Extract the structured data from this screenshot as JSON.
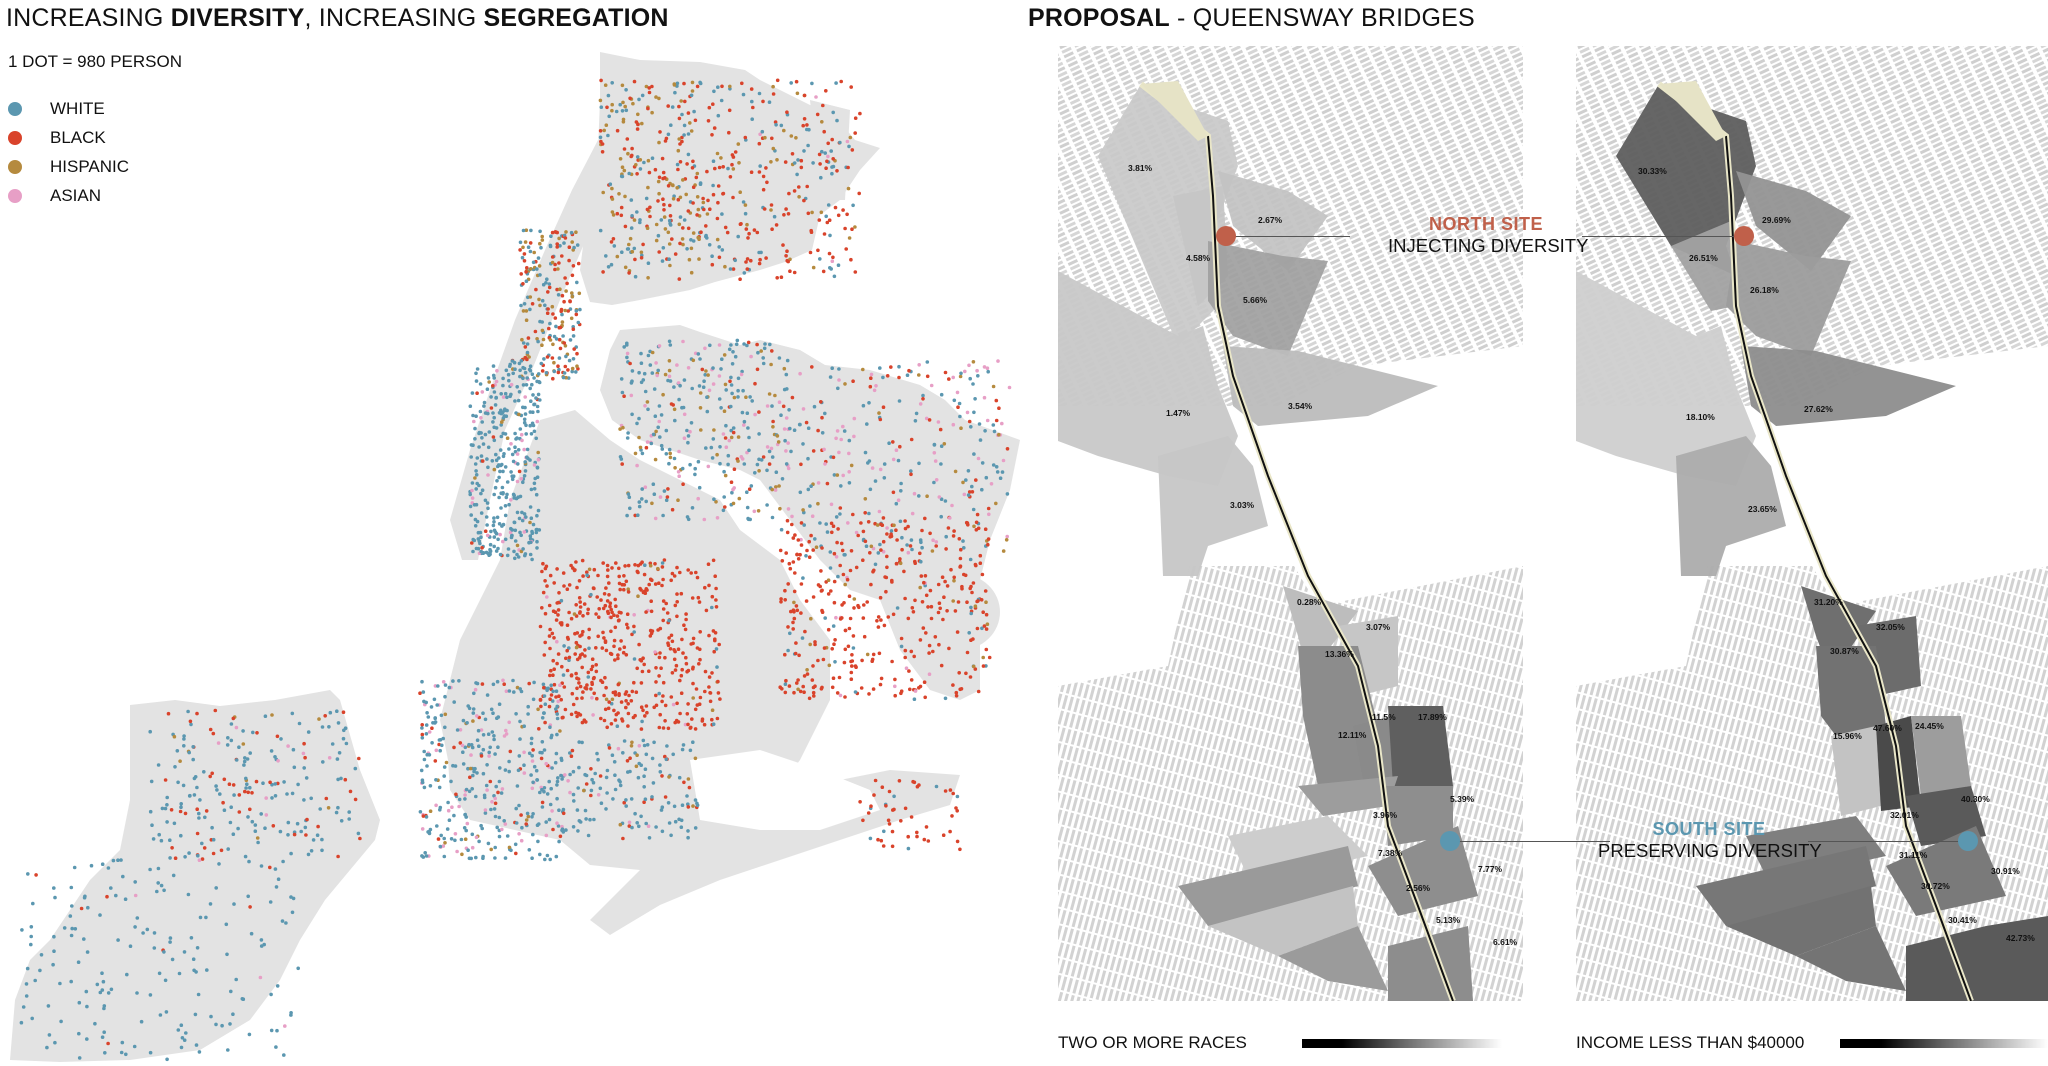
{
  "left": {
    "title_parts": [
      {
        "text": "INCREASING ",
        "bold": false
      },
      {
        "text": "DIVERSITY",
        "bold": true
      },
      {
        "text": ", INCREASING ",
        "bold": false
      },
      {
        "text": "SEGREGATION",
        "bold": true
      }
    ],
    "dot_scale": "1 DOT = 980 PERSON",
    "legend": [
      {
        "label": "WHITE",
        "color": "#5b97b0"
      },
      {
        "label": "BLACK",
        "color": "#d9432b"
      },
      {
        "label": "HISPANIC",
        "color": "#b58a3e"
      },
      {
        "label": "ASIAN",
        "color": "#e79fc6"
      }
    ],
    "map_land_color": "#e3e3e3"
  },
  "right": {
    "title_bold": "PROPOSAL",
    "title_rest": " - QUEENSWAY BRIDGES",
    "north_site": {
      "name": "NORTH SITE",
      "subtitle": "INJECTING DIVERSITY",
      "color": "#c0604a"
    },
    "south_site": {
      "name": "SOUTH SITE",
      "subtitle": "PRESERVING DIVERSITY",
      "color": "#5b97b0"
    },
    "races_map": {
      "legend_label": "TWO OR MORE RACES",
      "values": {
        "n1": "3.81%",
        "n2": "2.67%",
        "n3": "4.58%",
        "n4": "5.66%",
        "m1": "1.47%",
        "m2": "3.54%",
        "m3": "3.03%",
        "s1": "0.28%",
        "s2": "3.07%",
        "s3": "13.36%",
        "s4": "12.11%",
        "s5": "11.5%",
        "s6": "17.89%",
        "s7": "5.39%",
        "s8": "3.96%",
        "s9": "7.38%",
        "s10": "7.77%",
        "s11": "2.56%",
        "s12": "5.13%",
        "s13": "6.61%"
      }
    },
    "income_map": {
      "legend_label": "INCOME LESS THAN $40000",
      "values": {
        "n1": "30.33%",
        "n2": "29.69%",
        "n3": "26.51%",
        "n4": "26.18%",
        "m1": "18.10%",
        "m2": "27.62%",
        "m3": "23.65%",
        "s1": "31.20%",
        "s2": "32.05%",
        "s3": "30.87%",
        "s4": "15.96%",
        "s5": "47.60%",
        "s6": "24.45%",
        "s7": "40.30%",
        "s8": "32.01%",
        "s9": "31.11%",
        "s10": "30.91%",
        "s11": "30.72%",
        "s12": "30.41%",
        "s13": "42.73%"
      }
    }
  }
}
